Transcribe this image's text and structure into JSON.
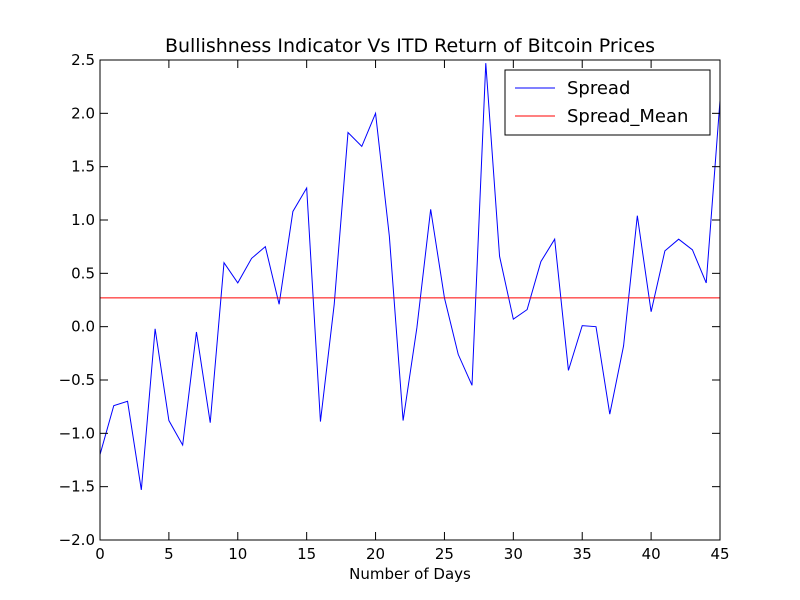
{
  "chart_data": {
    "type": "line",
    "title": "Bullishness Indicator Vs ITD Return of Bitcoin Prices",
    "xlabel": "Number of Days",
    "ylabel": "",
    "xlim": [
      0,
      45
    ],
    "ylim": [
      -2.0,
      2.5
    ],
    "xticks": [
      "0",
      "5",
      "10",
      "15",
      "20",
      "25",
      "30",
      "35",
      "40",
      "45"
    ],
    "yticks": [
      "−2.0",
      "−1.5",
      "−1.0",
      "−0.5",
      "0.0",
      "0.5",
      "1.0",
      "1.5",
      "2.0",
      "2.5"
    ],
    "grid": false,
    "legend_position": "top-right",
    "series": [
      {
        "name": "Spread",
        "color": "#0000ff",
        "x": [
          0,
          1,
          2,
          3,
          4,
          5,
          6,
          7,
          8,
          9,
          10,
          11,
          12,
          13,
          14,
          15,
          16,
          17,
          18,
          19,
          20,
          21,
          22,
          23,
          24,
          25,
          26,
          27,
          28,
          29,
          30,
          31,
          32,
          33,
          34,
          35,
          36,
          37,
          38,
          39,
          40,
          41,
          42,
          43,
          44,
          45
        ],
        "values": [
          -1.2,
          -0.74,
          -0.7,
          -1.53,
          -0.02,
          -0.88,
          -1.11,
          -0.05,
          -0.9,
          0.6,
          0.41,
          0.64,
          0.75,
          0.21,
          1.08,
          1.3,
          -0.89,
          0.21,
          1.82,
          1.69,
          2.0,
          0.85,
          -0.88,
          -0.01,
          1.1,
          0.27,
          -0.26,
          -0.55,
          2.47,
          0.66,
          0.07,
          0.16,
          0.61,
          0.82,
          -0.41,
          0.01,
          0.0,
          -0.82,
          -0.18,
          1.04,
          0.14,
          0.71,
          0.82,
          0.72,
          0.41,
          2.12
        ]
      },
      {
        "name": "Spread_Mean",
        "color": "#ff0000",
        "x": [
          0,
          45
        ],
        "values": [
          0.27,
          0.27
        ]
      }
    ]
  }
}
